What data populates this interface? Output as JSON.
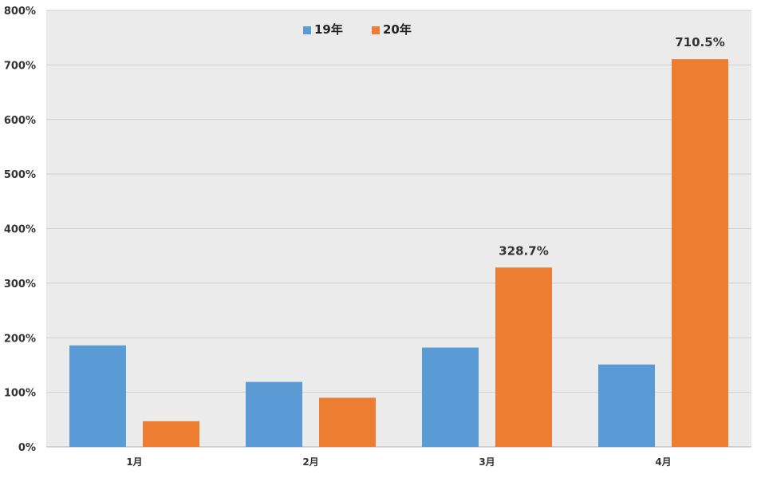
{
  "chart_data": {
    "type": "bar",
    "categories": [
      "1月",
      "2月",
      "3月",
      "4月"
    ],
    "series": [
      {
        "name": "19年",
        "values": [
          186,
          119,
          182,
          151
        ],
        "color": "#5b9bd5"
      },
      {
        "name": "20年",
        "values": [
          47,
          90,
          328.7,
          710.5
        ],
        "color": "#ed7d31"
      }
    ],
    "data_labels": [
      {
        "series": 1,
        "index": 2,
        "text": "328.7%"
      },
      {
        "series": 1,
        "index": 3,
        "text": "710.5%"
      }
    ],
    "yticks": [
      "0%",
      "100%",
      "200%",
      "300%",
      "400%",
      "500%",
      "600%",
      "700%",
      "800%"
    ],
    "ylim": [
      0,
      800
    ],
    "title": "",
    "xlabel": "",
    "ylabel": "",
    "grid": true,
    "legend_position": "top-center",
    "plot_background": "#ebebeb",
    "gridline_color": "#d0d0d0"
  }
}
